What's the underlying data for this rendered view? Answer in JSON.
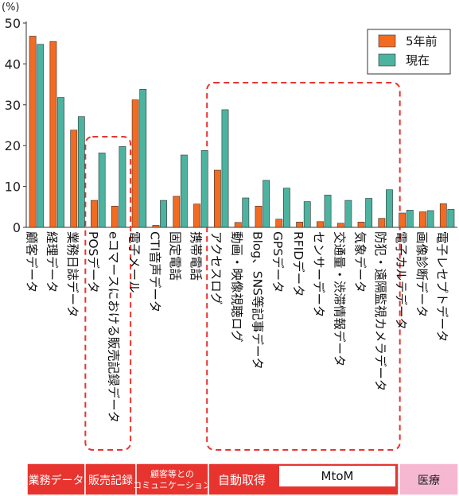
{
  "chart_data": {
    "type": "bar",
    "unit_label": "(%)",
    "ylim": [
      0,
      50
    ],
    "yticks": [
      0,
      10,
      20,
      30,
      40,
      50
    ],
    "grid": false,
    "legend_position": "top-right",
    "categories": [
      "顧客データ",
      "経理データ",
      "業務日誌データ",
      "POSデータ",
      "eコマースにおける販売記録データ",
      "電子メール",
      "CTI音声データ",
      "固定電話",
      "携帯電話",
      "アクセスログ",
      "動画・映像視聴ログ",
      "Blog、SNS等記事データ",
      "GPSデータ",
      "RFIDデータ",
      "センサーデータ",
      "交通量・渋滞情報データ",
      "気象データ",
      "防犯・遠隔監視カメラデータ",
      "電子カルテデータ",
      "画像診断データ",
      "電子レセプトデータ"
    ],
    "series": [
      {
        "name": "5年前",
        "color": "#f26b21",
        "values": [
          46.8,
          45.5,
          23.8,
          6.6,
          5.2,
          31.2,
          0.5,
          7.6,
          5.7,
          14.0,
          1.2,
          5.2,
          2.0,
          1.3,
          1.4,
          1.0,
          1.3,
          2.2,
          3.5,
          3.8,
          5.8
        ]
      },
      {
        "name": "現在",
        "color": "#4cb3a0",
        "values": [
          44.8,
          31.8,
          27.1,
          18.2,
          19.8,
          33.8,
          6.6,
          17.7,
          18.8,
          28.8,
          7.2,
          11.5,
          9.6,
          6.3,
          7.9,
          6.6,
          7.1,
          9.2,
          4.2,
          4.1,
          4.4
        ]
      }
    ],
    "highlights": [
      {
        "name": "販売記録",
        "from": 3,
        "to": 4
      },
      {
        "name": "MtoM",
        "from": 9,
        "to": 17
      }
    ],
    "groups": [
      {
        "name": "業務データ",
        "from": 0,
        "to": 2,
        "color": "#e8342f"
      },
      {
        "name": "販売記録",
        "from": 3,
        "to": 4,
        "color": "#e8342f"
      },
      {
        "name": "顧客等とのコミュニケーション",
        "lines": [
          "顧客等との",
          "コミュニケーション"
        ],
        "from": 5,
        "to": 8,
        "color": "#e8342f"
      },
      {
        "name": "自動取得",
        "from": 9,
        "to": 17,
        "color": "#e8342f",
        "sub": {
          "name": "MtoM"
        }
      },
      {
        "name": "医療",
        "from": 18,
        "to": 20,
        "color": "#f6b8d0"
      }
    ],
    "accent_dash": "#e8342f"
  }
}
